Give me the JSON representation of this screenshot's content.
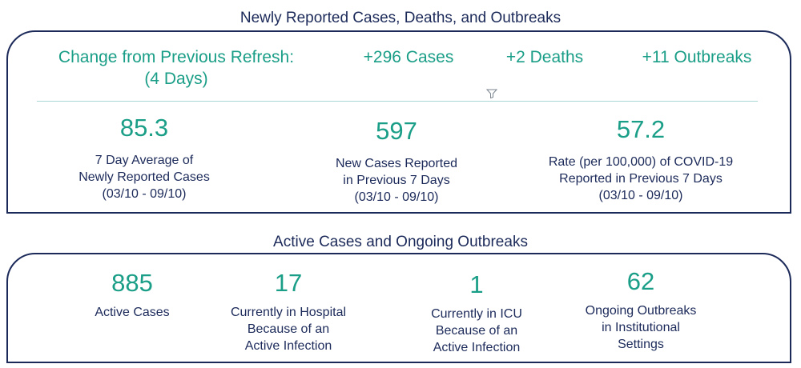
{
  "section1": {
    "title": "Newly Reported Cases, Deaths, and Outbreaks",
    "change_label_line1": "Change from Previous Refresh:",
    "change_label_line2": "(4 Days)",
    "cases_delta": "+296 Cases",
    "deaths_delta": "+2 Deaths",
    "outbreaks_delta": "+11 Outbreaks",
    "filter_icon": "filter-icon",
    "stats": [
      {
        "value": "85.3",
        "lines": [
          "7 Day Average of",
          "Newly Reported Cases",
          "(03/10 - 09/10)"
        ]
      },
      {
        "value": "597",
        "lines": [
          "New Cases Reported",
          "in Previous 7 Days",
          "(03/10 - 09/10)"
        ]
      },
      {
        "value": "57.2",
        "lines": [
          "Rate (per 100,000) of COVID-19",
          "Reported in Previous 7 Days",
          "(03/10 - 09/10)"
        ]
      }
    ]
  },
  "section2": {
    "title": "Active Cases and Ongoing Outbreaks",
    "stats": [
      {
        "value": "885",
        "lines": [
          "Active Cases"
        ]
      },
      {
        "value": "17",
        "lines": [
          "Currently in Hospital",
          "Because of an",
          "Active Infection"
        ]
      },
      {
        "value": "1",
        "lines": [
          "Currently in ICU",
          "Because of an",
          "Active Infection"
        ]
      },
      {
        "value": "62",
        "lines": [
          "Ongoing Outbreaks",
          "in Institutional",
          "Settings"
        ]
      }
    ]
  },
  "colors": {
    "teal": "#1a9e87",
    "navy": "#1c2a5a",
    "rule": "#a9d7d8"
  }
}
